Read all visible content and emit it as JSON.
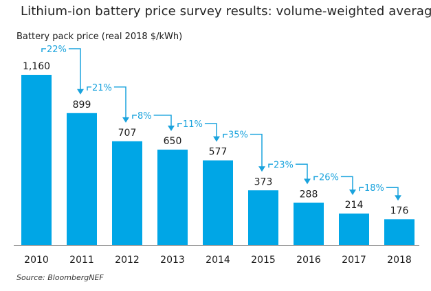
{
  "chart_data": {
    "type": "bar",
    "title": "Lithium-ion battery price survey results: volume-weighted average",
    "ylabel": "Battery pack price (real 2018 $/kWh)",
    "xlabel": "",
    "categories": [
      "2010",
      "2011",
      "2012",
      "2013",
      "2014",
      "2015",
      "2016",
      "2017",
      "2018"
    ],
    "values": [
      1160,
      899,
      707,
      650,
      577,
      373,
      288,
      214,
      176
    ],
    "value_labels": [
      "1,160",
      "899",
      "707",
      "650",
      "577",
      "373",
      "288",
      "214",
      "176"
    ],
    "changes": [
      "22%",
      "21%",
      "8%",
      "11%",
      "35%",
      "23%",
      "26%",
      "18%"
    ],
    "ylim": [
      0,
      1160
    ],
    "grid": false,
    "bar_color": "#00a6e6",
    "annotation_color": "#1aa3dd",
    "source": "Source: BloombergNEF"
  }
}
